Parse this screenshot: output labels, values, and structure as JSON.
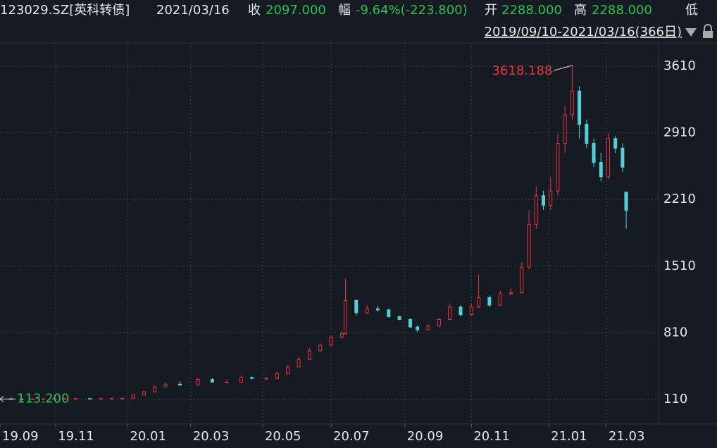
{
  "header": {
    "code": "123029.SZ[英科转债]",
    "date": "2021/03/16",
    "close_label": "收",
    "close": "2097.000",
    "change_label": "幅",
    "change": "-9.64%(-223.800)",
    "open_label": "开",
    "open": "2288.000",
    "high_label": "高",
    "high": "2288.000",
    "low_label": "低",
    "range": "2019/09/10-2021/03/16(366日)"
  },
  "chart_data": {
    "type": "candlestick",
    "x": [
      0,
      6,
      12,
      18,
      24,
      30,
      36,
      42,
      50,
      56,
      62,
      68,
      74,
      80,
      86,
      92,
      100,
      110,
      118,
      126,
      134,
      140,
      148,
      154,
      160,
      166,
      172,
      178,
      184,
      190,
      192,
      198,
      204,
      210,
      216,
      222,
      228,
      232,
      238,
      244,
      250,
      256,
      262,
      266,
      272,
      278,
      284,
      290,
      294,
      298,
      302,
      306,
      310,
      314,
      318,
      322,
      326,
      330,
      334,
      338,
      342,
      346,
      348
    ],
    "open": [
      114,
      116,
      115,
      114,
      115,
      116,
      117,
      118,
      119,
      117,
      119,
      121,
      122,
      155,
      190,
      240,
      270,
      260,
      320,
      290,
      290,
      340,
      330,
      330,
      380,
      450,
      530,
      620,
      680,
      760,
      800,
      1150,
      1020,
      1060,
      1050,
      980,
      950,
      870,
      840,
      880,
      950,
      1080,
      1000,
      1080,
      1180,
      1100,
      1220,
      1230,
      1500,
      1950,
      2250,
      2150,
      2300,
      2800,
      3100,
      3350,
      3000,
      2800,
      2600,
      2450,
      2850,
      2750,
      2288
    ],
    "high": [
      118,
      118,
      117,
      117,
      118,
      119,
      120,
      121,
      121,
      121,
      123,
      124,
      160,
      200,
      250,
      290,
      300,
      340,
      330,
      310,
      360,
      350,
      345,
      400,
      470,
      560,
      650,
      700,
      780,
      830,
      1380,
      1160,
      1100,
      1090,
      1060,
      990,
      960,
      890,
      900,
      970,
      1120,
      1100,
      1120,
      1420,
      1200,
      1250,
      1280,
      1550,
      2100,
      2350,
      2300,
      2450,
      2900,
      3200,
      3618.188,
      3400,
      3050,
      2850,
      2700,
      2910,
      2880,
      2800,
      2288
    ],
    "low": [
      113,
      114,
      113,
      113,
      114,
      115,
      116,
      117,
      113.2,
      116,
      118,
      120,
      121,
      150,
      185,
      235,
      250,
      255,
      285,
      280,
      285,
      320,
      320,
      325,
      375,
      445,
      520,
      610,
      670,
      750,
      790,
      990,
      1010,
      1030,
      970,
      940,
      860,
      820,
      830,
      870,
      940,
      980,
      990,
      1070,
      1080,
      1090,
      1200,
      1220,
      1480,
      1900,
      2100,
      2100,
      2250,
      2700,
      3050,
      2850,
      2750,
      2550,
      2400,
      2420,
      2700,
      2500,
      1900
    ],
    "close": [
      116,
      115,
      114,
      115,
      116,
      117,
      118,
      119,
      117,
      119,
      121,
      122,
      155,
      190,
      240,
      270,
      260,
      320,
      290,
      290,
      340,
      330,
      330,
      380,
      450,
      530,
      620,
      680,
      760,
      800,
      1150,
      1020,
      1060,
      1050,
      980,
      950,
      870,
      840,
      880,
      950,
      1080,
      1000,
      1080,
      1180,
      1100,
      1220,
      1230,
      1500,
      1950,
      2250,
      2150,
      2300,
      2800,
      3100,
      3350,
      3000,
      2800,
      2600,
      2450,
      2850,
      2750,
      2550,
      2097
    ],
    "up_color": "#e8333a",
    "down_color": "#52d0d8",
    "max_label": "3618.188",
    "min_label": "113.200",
    "xlim": [
      0,
      366
    ],
    "xticks": [
      {
        "value": 0,
        "label": "19.09"
      },
      {
        "value": 31,
        "label": "19.11"
      },
      {
        "value": 71,
        "label": "20.01"
      },
      {
        "value": 106,
        "label": "20.03"
      },
      {
        "value": 146,
        "label": "20.05"
      },
      {
        "value": 184,
        "label": "20.07"
      },
      {
        "value": 225,
        "label": "20.09"
      },
      {
        "value": 262,
        "label": "20.11"
      },
      {
        "value": 305,
        "label": "21.01"
      },
      {
        "value": 337,
        "label": "21.03"
      }
    ],
    "ylim": [
      -150,
      3855
    ],
    "yticks": [
      110,
      810,
      1510,
      2210,
      2910,
      3610
    ],
    "grid": true
  }
}
